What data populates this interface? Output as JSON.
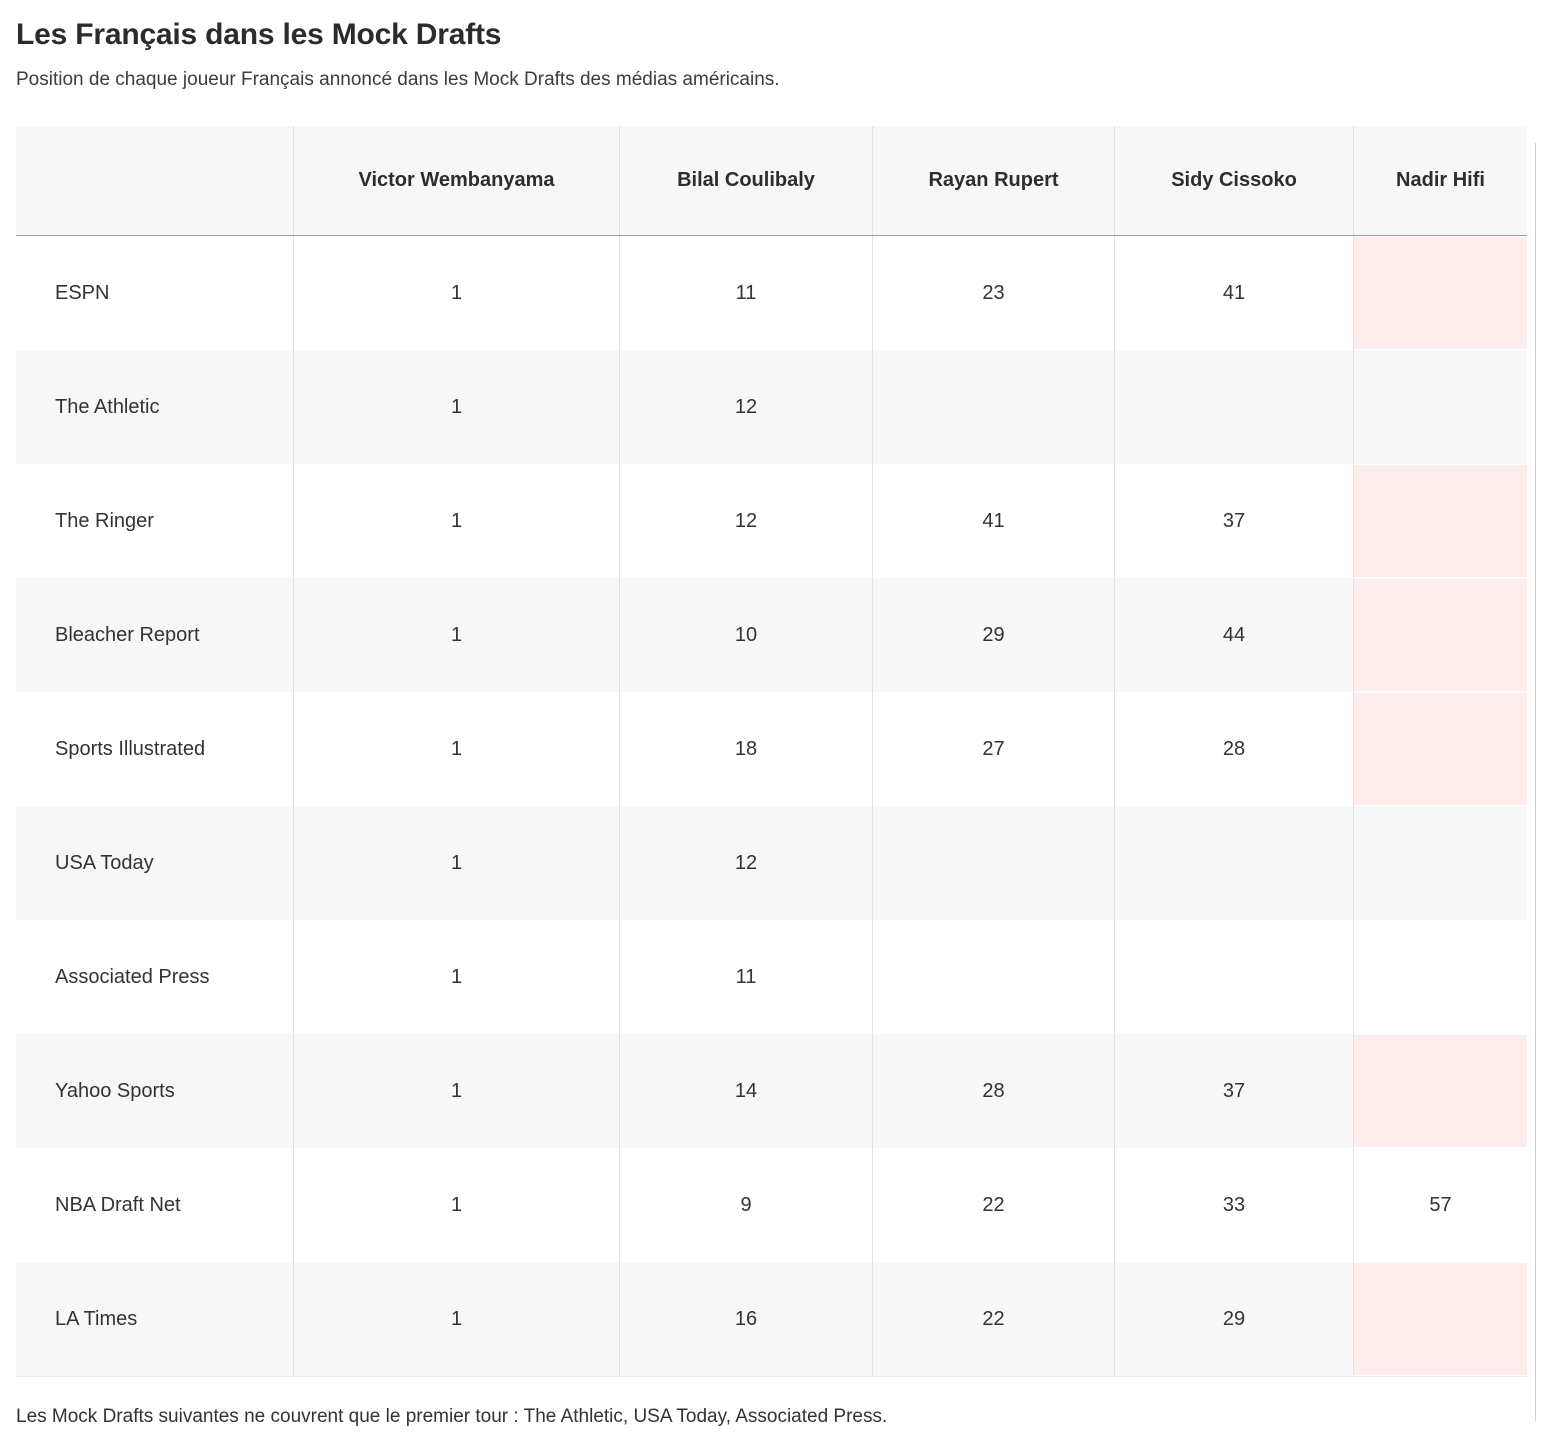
{
  "header": {
    "title": "Les Français dans les Mock Drafts",
    "subtitle": "Position de chaque joueur Français annoncé dans les Mock Drafts des médias américains."
  },
  "chart_data": {
    "type": "table",
    "title": "Les Français dans les Mock Drafts",
    "subtitle": "Position de chaque joueur Français annoncé dans les Mock Drafts des médias américains.",
    "columns": [
      "",
      "Victor Wembanyama",
      "Bilal Coulibaly",
      "Rayan Rupert",
      "Sidy Cissoko",
      "Nadir Hifi"
    ],
    "rows": [
      {
        "source": "ESPN",
        "values": [
          "1",
          "11",
          "23",
          "41",
          ""
        ],
        "highlights": [
          false,
          false,
          false,
          false,
          true
        ]
      },
      {
        "source": "The Athletic",
        "values": [
          "1",
          "12",
          "",
          "",
          ""
        ],
        "highlights": [
          false,
          false,
          false,
          false,
          false
        ]
      },
      {
        "source": "The Ringer",
        "values": [
          "1",
          "12",
          "41",
          "37",
          ""
        ],
        "highlights": [
          false,
          false,
          false,
          false,
          true
        ]
      },
      {
        "source": "Bleacher Report",
        "values": [
          "1",
          "10",
          "29",
          "44",
          ""
        ],
        "highlights": [
          false,
          false,
          false,
          false,
          true
        ]
      },
      {
        "source": "Sports Illustrated",
        "values": [
          "1",
          "18",
          "27",
          "28",
          ""
        ],
        "highlights": [
          false,
          false,
          false,
          false,
          true
        ]
      },
      {
        "source": "USA Today",
        "values": [
          "1",
          "12",
          "",
          "",
          ""
        ],
        "highlights": [
          false,
          false,
          false,
          false,
          false
        ]
      },
      {
        "source": "Associated Press",
        "values": [
          "1",
          "11",
          "",
          "",
          ""
        ],
        "highlights": [
          false,
          false,
          false,
          false,
          false
        ]
      },
      {
        "source": "Yahoo Sports",
        "values": [
          "1",
          "14",
          "28",
          "37",
          ""
        ],
        "highlights": [
          false,
          false,
          false,
          false,
          true
        ]
      },
      {
        "source": "NBA Draft Net",
        "values": [
          "1",
          "9",
          "22",
          "33",
          "57"
        ],
        "highlights": [
          false,
          false,
          false,
          false,
          false
        ]
      },
      {
        "source": "LA Times",
        "values": [
          "1",
          "16",
          "22",
          "29",
          ""
        ],
        "highlights": [
          false,
          false,
          false,
          false,
          true
        ]
      }
    ],
    "footnote": "Les Mock Drafts suivantes ne couvrent que le premier tour : The Athletic, USA Today, Associated Press.",
    "colors": {
      "highlight_cell": "#fdeded",
      "row_stripe": "#f7f7f7",
      "header_background": "#f7f7f7",
      "column_border": "#e2e2e2",
      "header_bottom_border": "#9e9e9e"
    },
    "layout_hints": {
      "row_striping": true,
      "value_alignment": "center",
      "highlight_meaning": "empty highlighted cells shown in pink"
    }
  }
}
